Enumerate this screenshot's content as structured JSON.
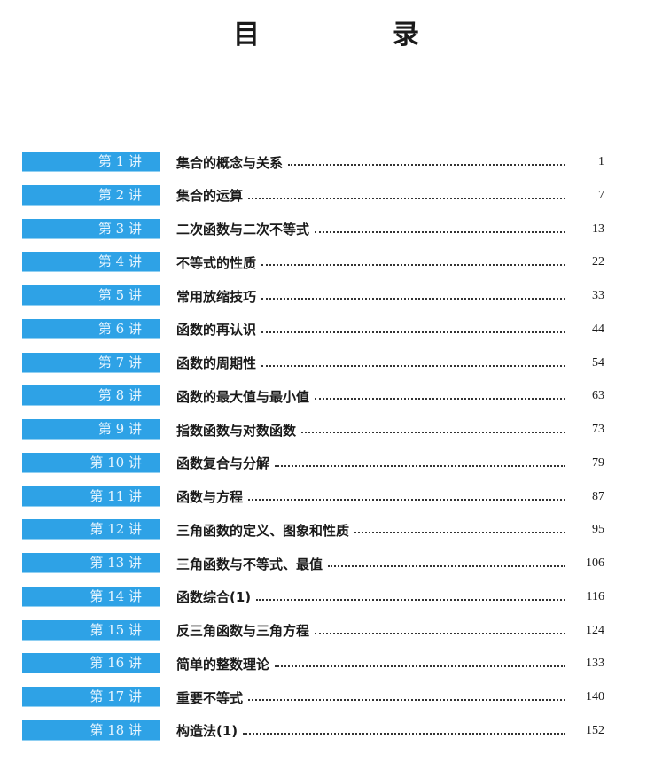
{
  "title": "目　录",
  "toc": [
    {
      "label": "第 1 讲",
      "title": "集合的概念与关系",
      "page": "1"
    },
    {
      "label": "第 2 讲",
      "title": "集合的运算",
      "page": "7"
    },
    {
      "label": "第 3 讲",
      "title": "二次函数与二次不等式",
      "page": "13"
    },
    {
      "label": "第 4 讲",
      "title": "不等式的性质",
      "page": "22"
    },
    {
      "label": "第 5 讲",
      "title": "常用放缩技巧",
      "page": "33"
    },
    {
      "label": "第 6 讲",
      "title": "函数的再认识",
      "page": "44"
    },
    {
      "label": "第 7 讲",
      "title": "函数的周期性",
      "page": "54"
    },
    {
      "label": "第 8 讲",
      "title": "函数的最大值与最小值",
      "page": "63"
    },
    {
      "label": "第 9 讲",
      "title": "指数函数与对数函数",
      "page": "73"
    },
    {
      "label": "第 10 讲",
      "title": "函数复合与分解",
      "page": "79"
    },
    {
      "label": "第 11 讲",
      "title": "函数与方程",
      "page": "87"
    },
    {
      "label": "第 12 讲",
      "title": "三角函数的定义、图象和性质",
      "page": "95"
    },
    {
      "label": "第 13 讲",
      "title": "三角函数与不等式、最值",
      "page": "106"
    },
    {
      "label": "第 14 讲",
      "title": "函数综合(1)",
      "page": "116"
    },
    {
      "label": "第 15 讲",
      "title": "反三角函数与三角方程",
      "page": "124"
    },
    {
      "label": "第 16 讲",
      "title": "简单的整数理论",
      "page": "133"
    },
    {
      "label": "第 17 讲",
      "title": "重要不等式",
      "page": "140"
    },
    {
      "label": "第 18 讲",
      "title": "构造法(1)",
      "page": "152"
    }
  ],
  "colors": {
    "badge": "#2ea2e6"
  }
}
